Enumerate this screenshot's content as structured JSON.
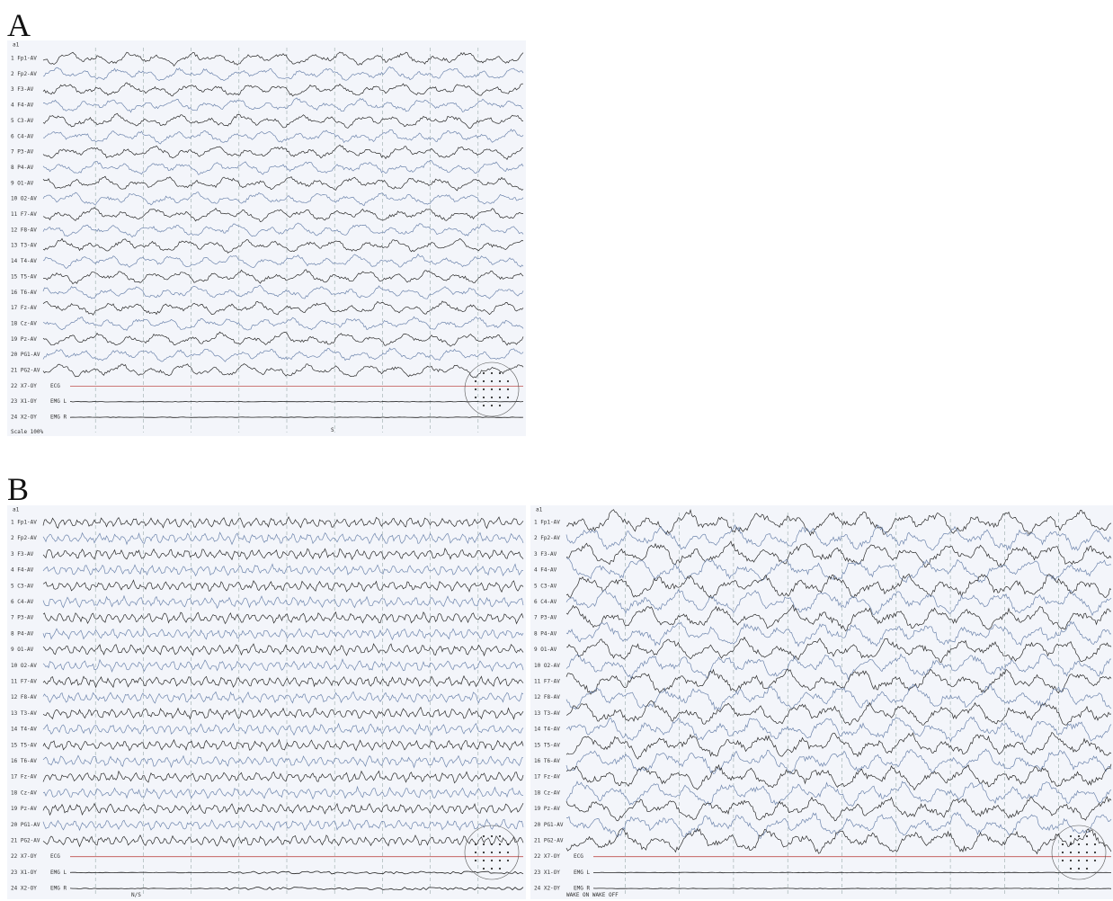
{
  "labels": {
    "a": "A",
    "b": "B"
  },
  "header": "a1",
  "channels": [
    "1 Fp1-AV",
    "2 Fp2-AV",
    "3 F3-AV",
    "4 F4-AV",
    "5 C3-AV",
    "6 C4-AV",
    "7 P3-AV",
    "8 P4-AV",
    "9 O1-AV",
    "10 O2-AV",
    "11 F7-AV",
    "12 F8-AV",
    "13 T3-AV",
    "14 T4-AV",
    "15 T5-AV",
    "16 T6-AV",
    "17 Fz-AV",
    "18 Cz-AV",
    "19 Pz-AV",
    "20 PG1-AV",
    "21 PG2-AV",
    "22 X7-OY",
    "23 X1-OY",
    "24 X2-OY"
  ],
  "aux_labels": [
    "ECG",
    "EMG L",
    "EMG R"
  ],
  "panel_a": {
    "footer_left": "Scale 100%",
    "footer_mid": "S"
  },
  "panel_b_left": {
    "footer": "N/S"
  },
  "panel_b_right": {
    "footer": "WAKE ON WAKE OFF"
  }
}
